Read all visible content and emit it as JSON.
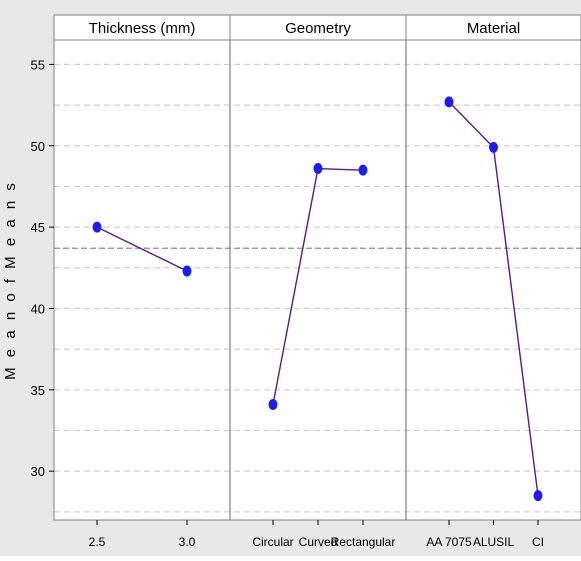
{
  "chart_data": {
    "type": "line",
    "title": "",
    "ylabel": "M e a n  o f  M e a n s",
    "ylim": [
      27,
      56.5
    ],
    "yticks": [
      30,
      35,
      40,
      45,
      50,
      55
    ],
    "grid": true,
    "reference_line": 43.7,
    "colors": {
      "background": "#e8e8e8",
      "plot_background": "#ffffff",
      "line": "#5b1a7a",
      "marker": "#1f1fe0",
      "reference": "#8c8c8c",
      "grid": "#c8c8c8"
    },
    "panels": [
      {
        "name": "Thickness (mm)",
        "categories": [
          "2.5",
          "3.0"
        ],
        "values": [
          45.0,
          42.3
        ]
      },
      {
        "name": "Geometry",
        "categories": [
          "Circular",
          "Curved",
          "Rectangular"
        ],
        "values": [
          34.1,
          48.6,
          48.5
        ]
      },
      {
        "name": "Material",
        "categories": [
          "AA 7075",
          "ALUSIL",
          "CI"
        ],
        "values": [
          52.7,
          49.9,
          28.5
        ]
      }
    ]
  }
}
